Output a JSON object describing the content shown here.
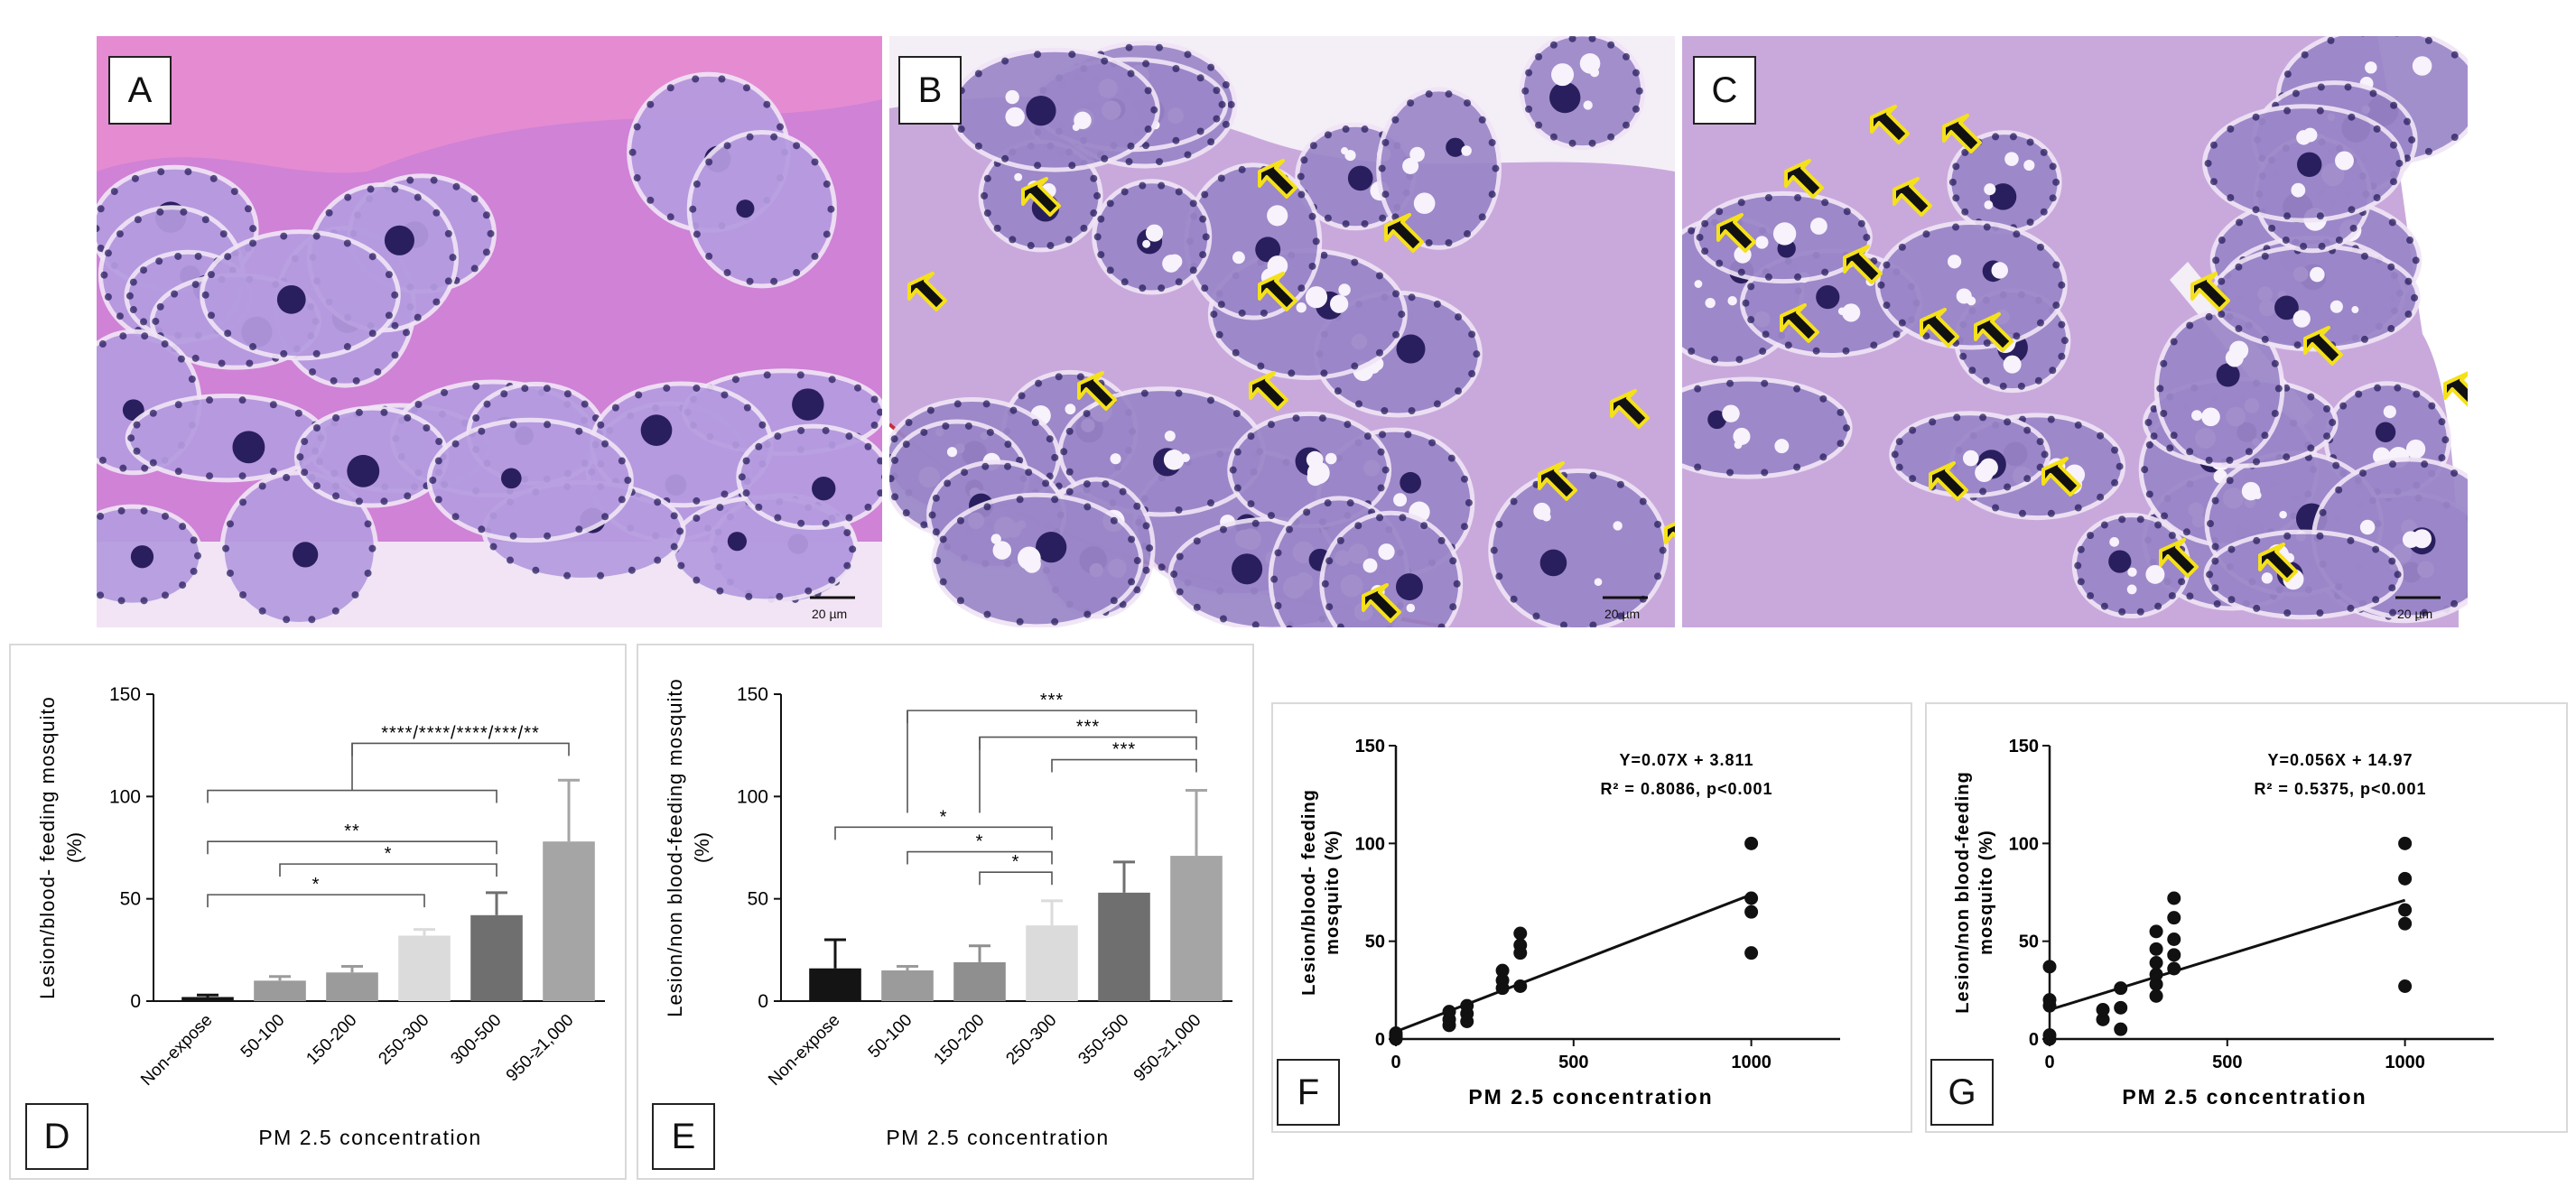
{
  "panels": {
    "A": {
      "label": "A",
      "scale_bar": "20 µm"
    },
    "B": {
      "label": "B",
      "scale_bar": "20 µm"
    },
    "C": {
      "label": "C",
      "scale_bar": "20 µm"
    },
    "D": {
      "label": "D"
    },
    "E": {
      "label": "E"
    },
    "F": {
      "label": "F"
    },
    "G": {
      "label": "G"
    }
  },
  "colors": {
    "stain_pink": "#e58bd2",
    "cell_purple": "#9a86c8",
    "nucleus": "#2a1f5e",
    "arrow_fill": "#111111",
    "arrow_outline": "#f5e11a"
  },
  "chart_data": [
    {
      "id": "D",
      "type": "bar",
      "xlabel": "PM 2.5 concentration",
      "ylabel": "Lesion/blood- feeding mosquito",
      "ylabel2": "(%)",
      "ylim": [
        0,
        150
      ],
      "yticks": [
        0,
        50,
        100,
        150
      ],
      "categories": [
        "Non-expose",
        "50-100",
        "150-200",
        "250-300",
        "300-500",
        "950-≥1,000"
      ],
      "values": [
        2,
        10,
        14,
        32,
        42,
        78
      ],
      "errors": [
        1,
        2,
        3,
        3,
        11,
        30
      ],
      "bar_colors": [
        "#141414",
        "#9b9b9c",
        "#9b9b9c",
        "#dbdbdb",
        "#6f6f70",
        "#a5a5a6"
      ],
      "brackets": [
        {
          "from": 0,
          "to": 3,
          "level": 52,
          "label": "*"
        },
        {
          "from": 1,
          "to": 4,
          "level": 67,
          "label": "*"
        },
        {
          "from": 0,
          "to": 4,
          "level": 78,
          "label": "**"
        },
        {
          "from": 0,
          "to": 4,
          "level": 103,
          "label": ""
        },
        {
          "from": 2,
          "to": 5,
          "level": 126,
          "label": "****/****/****/***/**"
        }
      ]
    },
    {
      "id": "E",
      "type": "bar",
      "xlabel": "PM 2.5 concentration",
      "ylabel": "Lesion/non blood-feeding mosquito",
      "ylabel2": "(%)",
      "ylim": [
        0,
        150
      ],
      "yticks": [
        0,
        50,
        100,
        150
      ],
      "categories": [
        "Non-expose",
        "50-100",
        "150-200",
        "250-300",
        "350-500",
        "950-≥1,000"
      ],
      "values": [
        16,
        15,
        19,
        37,
        53,
        71
      ],
      "errors": [
        14,
        2,
        8,
        12,
        15,
        32
      ],
      "bar_colors": [
        "#141414",
        "#9b9b9c",
        "#8f8f90",
        "#dbdbdb",
        "#6f6f70",
        "#a5a5a6"
      ],
      "brackets": [
        {
          "from": 0,
          "to": 3,
          "level": 85,
          "label": "*"
        },
        {
          "from": 1,
          "to": 3,
          "level": 73,
          "label": "*"
        },
        {
          "from": 2,
          "to": 3,
          "level": 63,
          "label": "*"
        },
        {
          "from": 1,
          "to": 5,
          "level": 142,
          "label": "***"
        },
        {
          "from": 2,
          "to": 5,
          "level": 129,
          "label": "***"
        },
        {
          "from": 3,
          "to": 5,
          "level": 118,
          "label": "***"
        }
      ]
    },
    {
      "id": "F",
      "type": "scatter",
      "xlabel": "PM 2.5 concentration",
      "ylabel": "Lesion/blood- feeding",
      "ylabel2": "mosquito (%)",
      "xlim": [
        0,
        1250
      ],
      "ylim": [
        0,
        150
      ],
      "xticks": [
        0,
        500,
        1000
      ],
      "yticks": [
        0,
        50,
        100,
        150
      ],
      "equation": "Y=0.07X + 3.811",
      "stats": "R² = 0.8086, p<0.001",
      "fit": {
        "slope": 0.07,
        "intercept": 3.811
      },
      "points": [
        [
          0,
          0
        ],
        [
          0,
          1
        ],
        [
          0,
          2
        ],
        [
          0,
          3
        ],
        [
          150,
          7
        ],
        [
          150,
          10
        ],
        [
          150,
          14
        ],
        [
          200,
          9
        ],
        [
          200,
          13
        ],
        [
          200,
          17
        ],
        [
          300,
          26
        ],
        [
          300,
          30
        ],
        [
          300,
          35
        ],
        [
          350,
          27
        ],
        [
          350,
          44
        ],
        [
          350,
          48
        ],
        [
          350,
          54
        ],
        [
          1000,
          44
        ],
        [
          1000,
          65
        ],
        [
          1000,
          72
        ],
        [
          1000,
          100
        ]
      ]
    },
    {
      "id": "G",
      "type": "scatter",
      "xlabel": "PM 2.5 concentration",
      "ylabel": "Lesion/non blood-feeding",
      "ylabel2": "mosquito (%)",
      "xlim": [
        0,
        1250
      ],
      "ylim": [
        0,
        150
      ],
      "xticks": [
        0,
        500,
        1000
      ],
      "yticks": [
        0,
        50,
        100,
        150
      ],
      "equation": "Y=0.056X + 14.97",
      "stats": "R² = 0.5375, p<0.001",
      "fit": {
        "slope": 0.056,
        "intercept": 14.97
      },
      "points": [
        [
          0,
          0
        ],
        [
          0,
          2
        ],
        [
          0,
          17
        ],
        [
          0,
          20
        ],
        [
          0,
          37
        ],
        [
          150,
          10
        ],
        [
          150,
          15
        ],
        [
          200,
          5
        ],
        [
          200,
          16
        ],
        [
          200,
          26
        ],
        [
          300,
          22
        ],
        [
          300,
          28
        ],
        [
          300,
          33
        ],
        [
          300,
          39
        ],
        [
          300,
          46
        ],
        [
          300,
          55
        ],
        [
          350,
          36
        ],
        [
          350,
          43
        ],
        [
          350,
          51
        ],
        [
          350,
          62
        ],
        [
          350,
          72
        ],
        [
          1000,
          27
        ],
        [
          1000,
          59
        ],
        [
          1000,
          66
        ],
        [
          1000,
          82
        ],
        [
          1000,
          100
        ]
      ]
    }
  ]
}
